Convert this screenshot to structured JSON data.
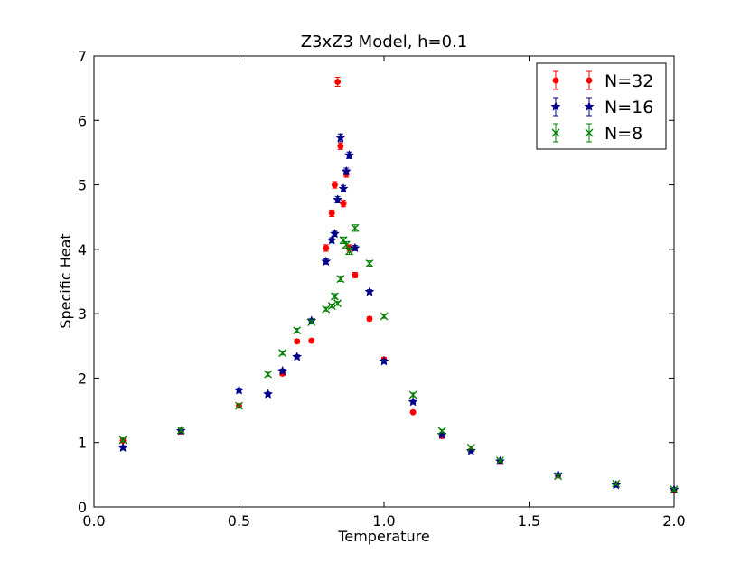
{
  "chart_data": {
    "type": "scatter",
    "title": "Z3xZ3 Model, h=0.1",
    "xlabel": "Temperature",
    "ylabel": "Specific Heat",
    "xlim": [
      0.0,
      2.0
    ],
    "ylim": [
      0,
      7
    ],
    "xticks": [
      "0.0",
      "0.5",
      "1.0",
      "1.5",
      "2.0"
    ],
    "yticks": [
      "0",
      "1",
      "2",
      "3",
      "4",
      "5",
      "6",
      "7"
    ],
    "legend_position": "top-right",
    "grid": false,
    "series": [
      {
        "name": "N=32",
        "color": "#ff0000",
        "marker": "circle",
        "points": [
          {
            "x": 0.1,
            "y": 1.03,
            "err": 0.03
          },
          {
            "x": 0.3,
            "y": 1.17,
            "err": 0.03
          },
          {
            "x": 0.5,
            "y": 1.57,
            "err": 0.03
          },
          {
            "x": 0.65,
            "y": 2.07,
            "err": 0.03
          },
          {
            "x": 0.7,
            "y": 2.57,
            "err": 0.03
          },
          {
            "x": 0.75,
            "y": 2.58,
            "err": 0.03
          },
          {
            "x": 0.8,
            "y": 4.02,
            "err": 0.05
          },
          {
            "x": 0.82,
            "y": 4.56,
            "err": 0.05
          },
          {
            "x": 0.83,
            "y": 5.0,
            "err": 0.05
          },
          {
            "x": 0.84,
            "y": 6.6,
            "err": 0.07
          },
          {
            "x": 0.85,
            "y": 5.6,
            "err": 0.05
          },
          {
            "x": 0.86,
            "y": 4.71,
            "err": 0.05
          },
          {
            "x": 0.87,
            "y": 5.17,
            "err": 0.05
          },
          {
            "x": 0.88,
            "y": 4.02,
            "err": 0.05
          },
          {
            "x": 0.9,
            "y": 3.6,
            "err": 0.04
          },
          {
            "x": 0.95,
            "y": 2.92,
            "err": 0.03
          },
          {
            "x": 1.0,
            "y": 2.29,
            "err": 0.03
          },
          {
            "x": 1.1,
            "y": 1.47,
            "err": 0.02
          },
          {
            "x": 1.2,
            "y": 1.1,
            "err": 0.02
          },
          {
            "x": 1.3,
            "y": 0.88,
            "err": 0.02
          },
          {
            "x": 1.4,
            "y": 0.7,
            "err": 0.02
          },
          {
            "x": 1.6,
            "y": 0.49,
            "err": 0.02
          },
          {
            "x": 1.8,
            "y": 0.35,
            "err": 0.02
          },
          {
            "x": 2.0,
            "y": 0.26,
            "err": 0.02
          }
        ]
      },
      {
        "name": "N=16",
        "color": "#00008b",
        "marker": "star",
        "points": [
          {
            "x": 0.1,
            "y": 0.92,
            "err": 0.03
          },
          {
            "x": 0.3,
            "y": 1.18,
            "err": 0.03
          },
          {
            "x": 0.5,
            "y": 1.81,
            "err": 0.03
          },
          {
            "x": 0.6,
            "y": 1.75,
            "err": 0.03
          },
          {
            "x": 0.65,
            "y": 2.11,
            "err": 0.03
          },
          {
            "x": 0.7,
            "y": 2.33,
            "err": 0.03
          },
          {
            "x": 0.75,
            "y": 2.89,
            "err": 0.03
          },
          {
            "x": 0.8,
            "y": 3.81,
            "err": 0.04
          },
          {
            "x": 0.82,
            "y": 4.14,
            "err": 0.04
          },
          {
            "x": 0.83,
            "y": 4.24,
            "err": 0.04
          },
          {
            "x": 0.84,
            "y": 4.77,
            "err": 0.05
          },
          {
            "x": 0.85,
            "y": 5.73,
            "err": 0.06
          },
          {
            "x": 0.86,
            "y": 4.94,
            "err": 0.05
          },
          {
            "x": 0.87,
            "y": 5.21,
            "err": 0.05
          },
          {
            "x": 0.88,
            "y": 5.46,
            "err": 0.05
          },
          {
            "x": 0.9,
            "y": 4.02,
            "err": 0.04
          },
          {
            "x": 0.95,
            "y": 3.34,
            "err": 0.03
          },
          {
            "x": 1.0,
            "y": 2.26,
            "err": 0.03
          },
          {
            "x": 1.1,
            "y": 1.63,
            "err": 0.02
          },
          {
            "x": 1.2,
            "y": 1.12,
            "err": 0.02
          },
          {
            "x": 1.3,
            "y": 0.87,
            "err": 0.02
          },
          {
            "x": 1.4,
            "y": 0.71,
            "err": 0.02
          },
          {
            "x": 1.6,
            "y": 0.5,
            "err": 0.02
          },
          {
            "x": 1.8,
            "y": 0.34,
            "err": 0.02
          },
          {
            "x": 2.0,
            "y": 0.27,
            "err": 0.02
          }
        ]
      },
      {
        "name": "N=8",
        "color": "#008000",
        "marker": "x",
        "points": [
          {
            "x": 0.1,
            "y": 1.04,
            "err": 0.03
          },
          {
            "x": 0.3,
            "y": 1.19,
            "err": 0.03
          },
          {
            "x": 0.5,
            "y": 1.57,
            "err": 0.03
          },
          {
            "x": 0.6,
            "y": 2.06,
            "err": 0.03
          },
          {
            "x": 0.65,
            "y": 2.39,
            "err": 0.03
          },
          {
            "x": 0.7,
            "y": 2.74,
            "err": 0.03
          },
          {
            "x": 0.75,
            "y": 2.87,
            "err": 0.03
          },
          {
            "x": 0.8,
            "y": 3.07,
            "err": 0.03
          },
          {
            "x": 0.82,
            "y": 3.12,
            "err": 0.03
          },
          {
            "x": 0.83,
            "y": 3.27,
            "err": 0.04
          },
          {
            "x": 0.84,
            "y": 3.16,
            "err": 0.03
          },
          {
            "x": 0.85,
            "y": 3.54,
            "err": 0.04
          },
          {
            "x": 0.86,
            "y": 4.14,
            "err": 0.05
          },
          {
            "x": 0.87,
            "y": 4.07,
            "err": 0.05
          },
          {
            "x": 0.88,
            "y": 3.97,
            "err": 0.05
          },
          {
            "x": 0.9,
            "y": 4.33,
            "err": 0.05
          },
          {
            "x": 0.95,
            "y": 3.78,
            "err": 0.04
          },
          {
            "x": 1.0,
            "y": 2.96,
            "err": 0.03
          },
          {
            "x": 1.1,
            "y": 1.74,
            "err": 0.03
          },
          {
            "x": 1.2,
            "y": 1.18,
            "err": 0.02
          },
          {
            "x": 1.3,
            "y": 0.92,
            "err": 0.02
          },
          {
            "x": 1.4,
            "y": 0.72,
            "err": 0.02
          },
          {
            "x": 1.6,
            "y": 0.48,
            "err": 0.02
          },
          {
            "x": 1.8,
            "y": 0.36,
            "err": 0.02
          },
          {
            "x": 2.0,
            "y": 0.27,
            "err": 0.02
          }
        ]
      }
    ]
  }
}
